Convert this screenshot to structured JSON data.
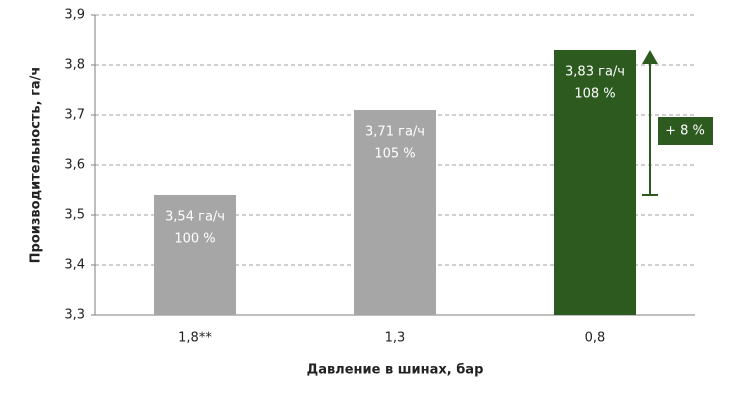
{
  "chart_data": {
    "type": "bar",
    "y_label": "Производительность, га/ч",
    "x_label": "Давление в шинах, бар",
    "categories": [
      "1,8**",
      "1,3",
      "0,8"
    ],
    "values": [
      3.54,
      3.71,
      3.83
    ],
    "value_labels": [
      "3,54 га/ч",
      "3,71 га/ч",
      "3,83 га/ч"
    ],
    "relative": {
      "values": [
        100,
        105,
        108
      ],
      "value_labels": [
        "100 %",
        "105 %",
        "108 %"
      ]
    },
    "colors": [
      "#a6a6a6",
      "#a6a6a6",
      "#2d5b1f"
    ],
    "annotation": "+ 8 %",
    "ylim": [
      3.3,
      3.9
    ],
    "yticks": [
      {
        "value": 3.3,
        "label": "3,3"
      },
      {
        "value": 3.4,
        "label": "3,4"
      },
      {
        "value": 3.5,
        "label": "3,5"
      },
      {
        "value": 3.6,
        "label": "3,6"
      },
      {
        "value": 3.7,
        "label": "3,7"
      },
      {
        "value": 3.8,
        "label": "3,8"
      },
      {
        "value": 3.9,
        "label": "3,9"
      }
    ],
    "grid": true
  }
}
